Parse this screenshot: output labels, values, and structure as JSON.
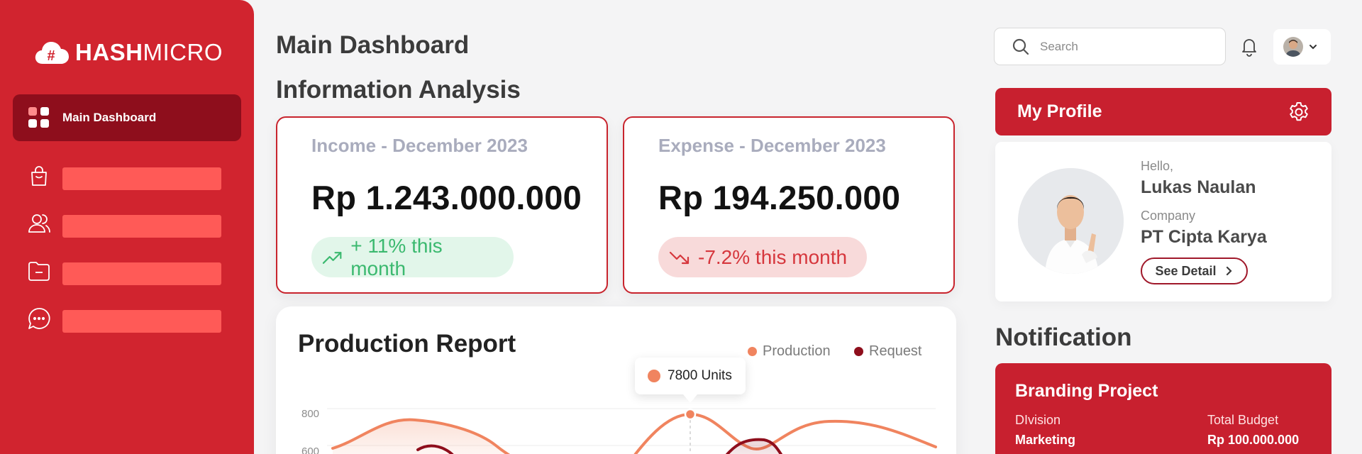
{
  "brand": {
    "name_bold": "HASH",
    "name_light": "MICRO"
  },
  "sidebar": {
    "active_item": "Main Dashboard",
    "items": [
      {
        "icon": "shopping-bag-icon"
      },
      {
        "icon": "users-icon"
      },
      {
        "icon": "folder-icon"
      },
      {
        "icon": "chat-icon"
      }
    ]
  },
  "header": {
    "page_title": "Main Dashboard",
    "search_placeholder": "Search"
  },
  "analysis": {
    "title": "Information Analysis",
    "income": {
      "label": "Income - December 2023",
      "value": "Rp 1.243.000.000",
      "change": "+ 11% this month"
    },
    "expense": {
      "label": "Expense - December 2023",
      "value": "Rp 194.250.000",
      "change": "-7.2% this month"
    }
  },
  "report": {
    "title": "Production Report",
    "legend": [
      {
        "name": "Production",
        "color": "#f0845f"
      },
      {
        "name": "Request",
        "color": "#8e0e1c"
      }
    ],
    "tooltip": "7800 Units",
    "ticks": [
      "800",
      "600"
    ]
  },
  "profile": {
    "title": "My Profile",
    "hello_label": "Hello,",
    "name": "Lukas Naulan",
    "company_label": "Company",
    "company": "PT Cipta Karya",
    "button": "See Detail"
  },
  "notification": {
    "title": "Notification",
    "card_title": "Branding Project",
    "division_label": "DIvision",
    "division": "Marketing",
    "budget_label": "Total Budget",
    "budget": "Rp 100.000.000"
  },
  "colors": {
    "primary": "#d1242f",
    "active_nav": "#8e0e1c",
    "positive": "#3bb96f",
    "negative": "#d6373d"
  }
}
